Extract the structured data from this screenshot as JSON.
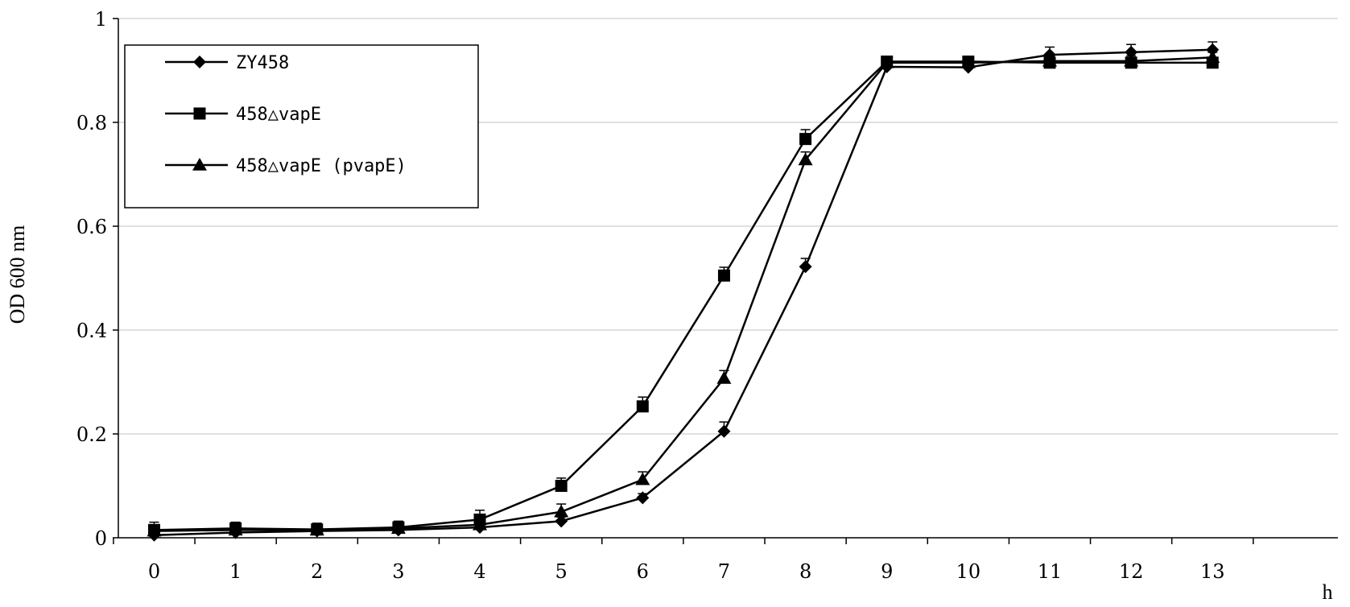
{
  "chart_data": {
    "type": "line",
    "title": "",
    "xlabel": "h",
    "ylabel": "OD 600 nm",
    "x": [
      0,
      1,
      2,
      3,
      4,
      5,
      6,
      7,
      8,
      9,
      10,
      11,
      12,
      13
    ],
    "xticks": [
      "0",
      "1",
      "2",
      "3",
      "4",
      "5",
      "6",
      "7",
      "8",
      "9",
      "10",
      "11",
      "12",
      "13"
    ],
    "yticks": [
      "0",
      "0.2",
      "0.4",
      "0.6",
      "0.8",
      "1"
    ],
    "ylim": [
      0,
      1
    ],
    "grid": "horizontal",
    "legend_position": "top-left",
    "series": [
      {
        "name": "ZY458",
        "marker": "diamond",
        "color": "#000000",
        "values": [
          0.005,
          0.01,
          0.013,
          0.015,
          0.02,
          0.032,
          0.077,
          0.205,
          0.522,
          0.907,
          0.906,
          0.93,
          0.935,
          0.94
        ],
        "errors": [
          0.008,
          0.008,
          0.008,
          0.008,
          0.008,
          0.008,
          0.008,
          0.018,
          0.016,
          0.01,
          0.01,
          0.015,
          0.015,
          0.015
        ]
      },
      {
        "name": "458△vapE",
        "marker": "square",
        "color": "#000000",
        "values": [
          0.015,
          0.018,
          0.016,
          0.02,
          0.035,
          0.1,
          0.253,
          0.505,
          0.768,
          0.917,
          0.917,
          0.915,
          0.915,
          0.915
        ],
        "errors": [
          0.015,
          0.012,
          0.012,
          0.012,
          0.018,
          0.015,
          0.018,
          0.016,
          0.018,
          0.01,
          0.01,
          0.01,
          0.01,
          0.01
        ]
      },
      {
        "name": "458△vapE (pvapE)",
        "marker": "triangle",
        "color": "#000000",
        "values": [
          0.013,
          0.015,
          0.015,
          0.018,
          0.025,
          0.05,
          0.112,
          0.307,
          0.728,
          0.915,
          0.915,
          0.918,
          0.918,
          0.925
        ],
        "errors": [
          0.01,
          0.01,
          0.01,
          0.01,
          0.01,
          0.015,
          0.015,
          0.015,
          0.015,
          0.01,
          0.01,
          0.01,
          0.01,
          0.01
        ]
      }
    ]
  }
}
